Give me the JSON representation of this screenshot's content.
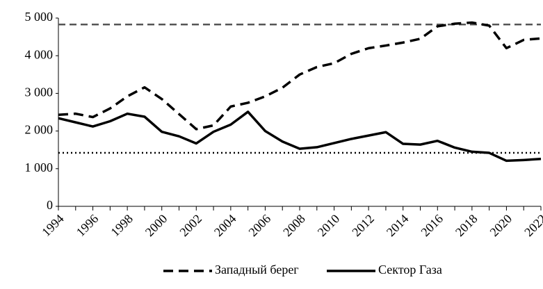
{
  "chart_data": {
    "type": "line",
    "x": [
      1994,
      1995,
      1996,
      1997,
      1998,
      1999,
      2000,
      2001,
      2002,
      2003,
      2004,
      2005,
      2006,
      2007,
      2008,
      2009,
      2010,
      2011,
      2012,
      2013,
      2014,
      2015,
      2016,
      2017,
      2018,
      2019,
      2020,
      2021,
      2022
    ],
    "series": [
      {
        "name": "Западный берег",
        "color": "#000000",
        "dash": "dashed",
        "values": [
          2430,
          2460,
          2370,
          2600,
          2920,
          3160,
          2850,
          2450,
          2050,
          2150,
          2650,
          2750,
          2920,
          3150,
          3500,
          3700,
          3800,
          4050,
          4200,
          4270,
          4350,
          4450,
          4780,
          4850,
          4880,
          4800,
          4200,
          4420,
          4460
        ]
      },
      {
        "name": "Сектор Газа",
        "color": "#000000",
        "dash": "solid",
        "values": [
          2340,
          2230,
          2120,
          2260,
          2460,
          2380,
          1980,
          1860,
          1670,
          1980,
          2170,
          2510,
          2000,
          1720,
          1530,
          1570,
          1680,
          1790,
          1880,
          1970,
          1660,
          1640,
          1740,
          1560,
          1450,
          1420,
          1210,
          1230,
          1260
        ]
      }
    ],
    "reference_lines": [
      {
        "value": 4830,
        "color": "#555555",
        "dash": "dashed"
      },
      {
        "value": 1420,
        "color": "#000000",
        "dash": "dotted"
      }
    ],
    "xlim": [
      1994,
      2022
    ],
    "xticks": [
      1994,
      1996,
      1998,
      2000,
      2002,
      2004,
      2006,
      2008,
      2010,
      2012,
      2014,
      2016,
      2018,
      2020,
      2022
    ],
    "ylim": [
      0,
      5000
    ],
    "yticks": [
      0,
      {
        "value": 1000,
        "label": "1 000"
      },
      {
        "value": 2000,
        "label": "2 000"
      },
      {
        "value": 3000,
        "label": "3 000"
      },
      {
        "value": 4000,
        "label": "4 000"
      },
      {
        "value": 5000,
        "label": "5 000"
      }
    ],
    "legend": "bottom"
  }
}
